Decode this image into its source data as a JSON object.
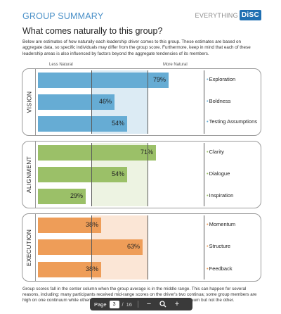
{
  "header": {
    "title": "GROUP SUMMARY",
    "logo_text": "EVERYTHING",
    "logo_badge": "DiSC"
  },
  "question": "What comes naturally to this group?",
  "intro": "Below are estimates of how naturally each leadership driver comes to this group. These estimates are based on aggregate data, so specific individuals may differ from the group score. Furthermore, keep in mind that each of these leadership areas is also influenced by factors beyond the aggregate tendencies of its members.",
  "scale": {
    "less": "Less Natural",
    "more": "More Natural"
  },
  "colors": {
    "vision": "#66acd4",
    "alignment": "#9bc068",
    "execution": "#ee9d58"
  },
  "sections": [
    {
      "id": "vision",
      "label": "VISION",
      "rows": [
        {
          "driver": "Exploration",
          "percent": 79,
          "pct_label": "79%"
        },
        {
          "driver": "Boldness",
          "percent": 46,
          "pct_label": "46%"
        },
        {
          "driver": "Testing Assumptions",
          "percent": 54,
          "pct_label": "54%"
        }
      ]
    },
    {
      "id": "alignment",
      "label": "ALIGNMENT",
      "rows": [
        {
          "driver": "Clarity",
          "percent": 71,
          "pct_label": "71%"
        },
        {
          "driver": "Dialogue",
          "percent": 54,
          "pct_label": "54%"
        },
        {
          "driver": "Inspiration",
          "percent": 29,
          "pct_label": "29%"
        }
      ]
    },
    {
      "id": "execution",
      "label": "EXECUTION",
      "rows": [
        {
          "driver": "Momentum",
          "percent": 38,
          "pct_label": "38%"
        },
        {
          "driver": "Structure",
          "percent": 63,
          "pct_label": "63%"
        },
        {
          "driver": "Feedback",
          "percent": 38,
          "pct_label": "38%"
        }
      ]
    }
  ],
  "footnote": "Group scores fall in the center column when the group average is in the middle range. This can happen for several reasons, including: many participants received mid-range scores on the driver's two continua; some group members are high on one continuum while others are low; or group members are high on one continuum but not the other.",
  "pager": {
    "label": "Page",
    "current": "3",
    "separator": "/",
    "total": "16",
    "zoom_out": "−",
    "zoom_icon": "search-icon",
    "zoom_in": "+"
  }
}
